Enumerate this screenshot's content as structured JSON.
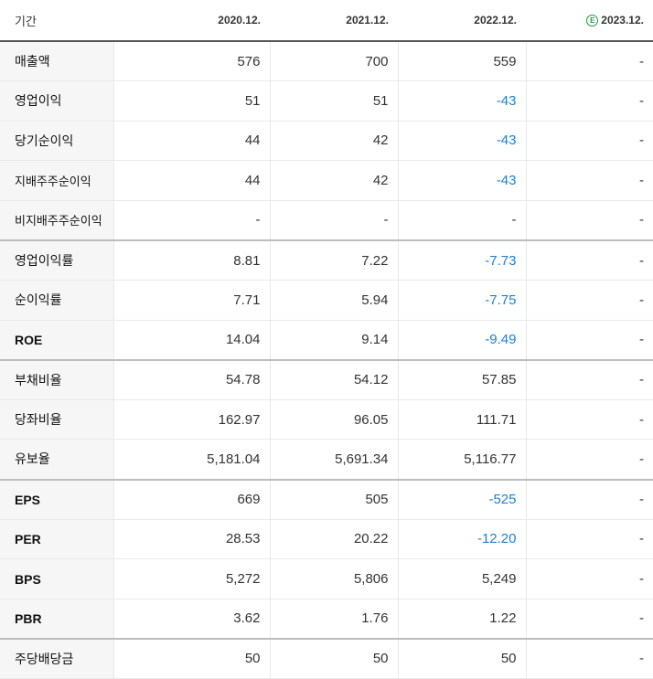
{
  "header": {
    "label": "기간",
    "periods": [
      "2020.12.",
      "2021.12.",
      "2022.12.",
      "2023.12."
    ],
    "estimate_mark": "E"
  },
  "colors": {
    "negative": "#1f7fd2",
    "estimate_badge": "#1c9b3d"
  },
  "rows": [
    {
      "label": "매출액",
      "values": [
        "576",
        "700",
        "559",
        "-"
      ]
    },
    {
      "label": "영업이익",
      "values": [
        "51",
        "51",
        "-43",
        "-"
      ]
    },
    {
      "label": "당기순이익",
      "values": [
        "44",
        "42",
        "-43",
        "-"
      ]
    },
    {
      "label": "지배주주순이익",
      "values": [
        "44",
        "42",
        "-43",
        "-"
      ]
    },
    {
      "label": "비지배주주순이익",
      "values": [
        "-",
        "-",
        "-",
        "-"
      ]
    },
    {
      "label": "영업이익률",
      "values": [
        "8.81",
        "7.22",
        "-7.73",
        "-"
      ]
    },
    {
      "label": "순이익률",
      "values": [
        "7.71",
        "5.94",
        "-7.75",
        "-"
      ]
    },
    {
      "label": "ROE",
      "values": [
        "14.04",
        "9.14",
        "-9.49",
        "-"
      ]
    },
    {
      "label": "부채비율",
      "values": [
        "54.78",
        "54.12",
        "57.85",
        "-"
      ]
    },
    {
      "label": "당좌비율",
      "values": [
        "162.97",
        "96.05",
        "111.71",
        "-"
      ]
    },
    {
      "label": "유보율",
      "values": [
        "5,181.04",
        "5,691.34",
        "5,116.77",
        "-"
      ]
    },
    {
      "label": "EPS",
      "values": [
        "669",
        "505",
        "-525",
        "-"
      ]
    },
    {
      "label": "PER",
      "values": [
        "28.53",
        "20.22",
        "-12.20",
        "-"
      ]
    },
    {
      "label": "BPS",
      "values": [
        "5,272",
        "5,806",
        "5,249",
        "-"
      ]
    },
    {
      "label": "PBR",
      "values": [
        "3.62",
        "1.76",
        "1.22",
        "-"
      ]
    },
    {
      "label": "주당배당금",
      "values": [
        "50",
        "50",
        "50",
        "-"
      ]
    }
  ]
}
